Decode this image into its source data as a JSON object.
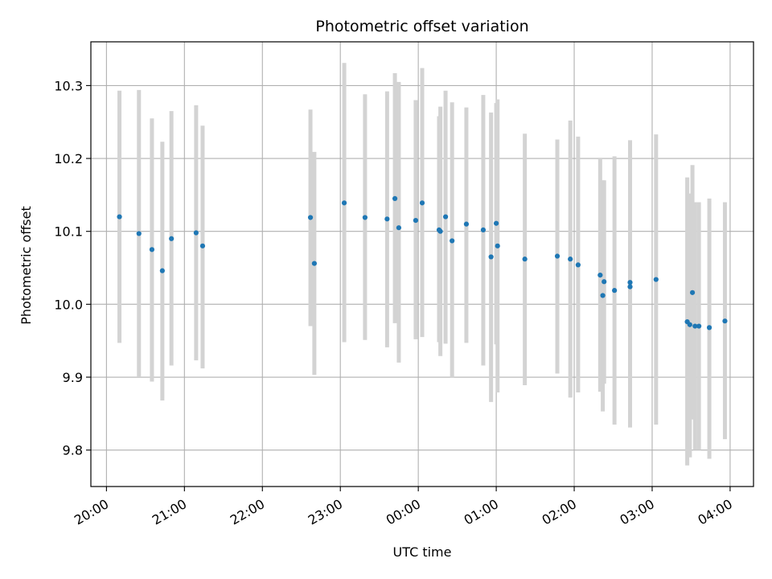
{
  "chart_data": {
    "type": "scatter",
    "title": "Photometric offset variation",
    "xlabel": "UTC time",
    "ylabel": "Photometric offset",
    "x_axis_kind": "time",
    "x_start_date": "2000-01-01",
    "xlim": [
      "2000-01-01T19:48",
      "2000-01-02T04:18"
    ],
    "ylim": [
      9.75,
      10.36
    ],
    "x_tick_labels": [
      "20:00",
      "21:00",
      "22:00",
      "23:00",
      "00:00",
      "01:00",
      "02:00",
      "03:00",
      "04:00"
    ],
    "y_tick_labels": [
      "9.8",
      "9.9",
      "10.0",
      "10.1",
      "10.2",
      "10.3"
    ],
    "y_ticks": [
      9.8,
      9.9,
      10.0,
      10.1,
      10.2,
      10.3
    ],
    "grid": true,
    "point_color": "#1f77b4",
    "errorbar_color": "#d3d3d3",
    "series": [
      {
        "x": [
          "20:10",
          "20:25",
          "20:35",
          "20:43",
          "20:50",
          "21:09",
          "21:14",
          "22:37",
          "22:40",
          "23:03",
          "23:19",
          "23:36",
          "23:42",
          "23:45",
          "23:58",
          "00:03",
          "00:16",
          "00:17",
          "00:21",
          "00:26",
          "00:37",
          "00:50",
          "00:56",
          "01:00",
          "01:01",
          "01:22",
          "01:47",
          "01:57",
          "02:03",
          "02:20",
          "02:22",
          "02:23",
          "02:31",
          "02:43",
          "02:43",
          "03:03",
          "03:27",
          "03:29",
          "03:31",
          "03:33",
          "03:36",
          "03:44",
          "03:56"
        ],
        "y": [
          10.12,
          10.097,
          10.075,
          10.046,
          10.09,
          10.098,
          10.08,
          10.119,
          10.056,
          10.139,
          10.119,
          10.117,
          10.145,
          10.105,
          10.115,
          10.139,
          10.102,
          10.1,
          10.12,
          10.087,
          10.11,
          10.102,
          10.065,
          10.111,
          10.08,
          10.062,
          10.066,
          10.062,
          10.054,
          10.04,
          10.012,
          10.031,
          10.019,
          10.03,
          10.024,
          10.034,
          9.976,
          9.972,
          10.016,
          9.97,
          9.97,
          9.968,
          9.977
        ],
        "err_low": [
          9.947,
          9.901,
          9.894,
          9.868,
          9.916,
          9.923,
          9.912,
          9.97,
          9.903,
          9.948,
          9.951,
          9.941,
          9.974,
          9.92,
          9.952,
          9.955,
          9.948,
          9.929,
          9.946,
          9.899,
          9.947,
          9.916,
          9.866,
          9.945,
          9.879,
          9.889,
          9.905,
          9.872,
          9.879,
          9.88,
          9.853,
          9.891,
          9.835,
          9.882,
          9.831,
          9.835,
          9.779,
          9.79,
          9.842,
          9.8,
          9.8,
          9.788,
          9.815
        ],
        "err_high": [
          10.293,
          10.294,
          10.255,
          10.223,
          10.265,
          10.273,
          10.245,
          10.267,
          10.209,
          10.331,
          10.288,
          10.292,
          10.317,
          10.305,
          10.28,
          10.324,
          10.258,
          10.271,
          10.293,
          10.277,
          10.27,
          10.287,
          10.263,
          10.276,
          10.281,
          10.234,
          10.226,
          10.252,
          10.23,
          10.2,
          10.17,
          10.17,
          10.203,
          10.1,
          10.225,
          10.233,
          10.174,
          10.152,
          10.191,
          10.14,
          10.14,
          10.145,
          10.14
        ]
      }
    ]
  }
}
